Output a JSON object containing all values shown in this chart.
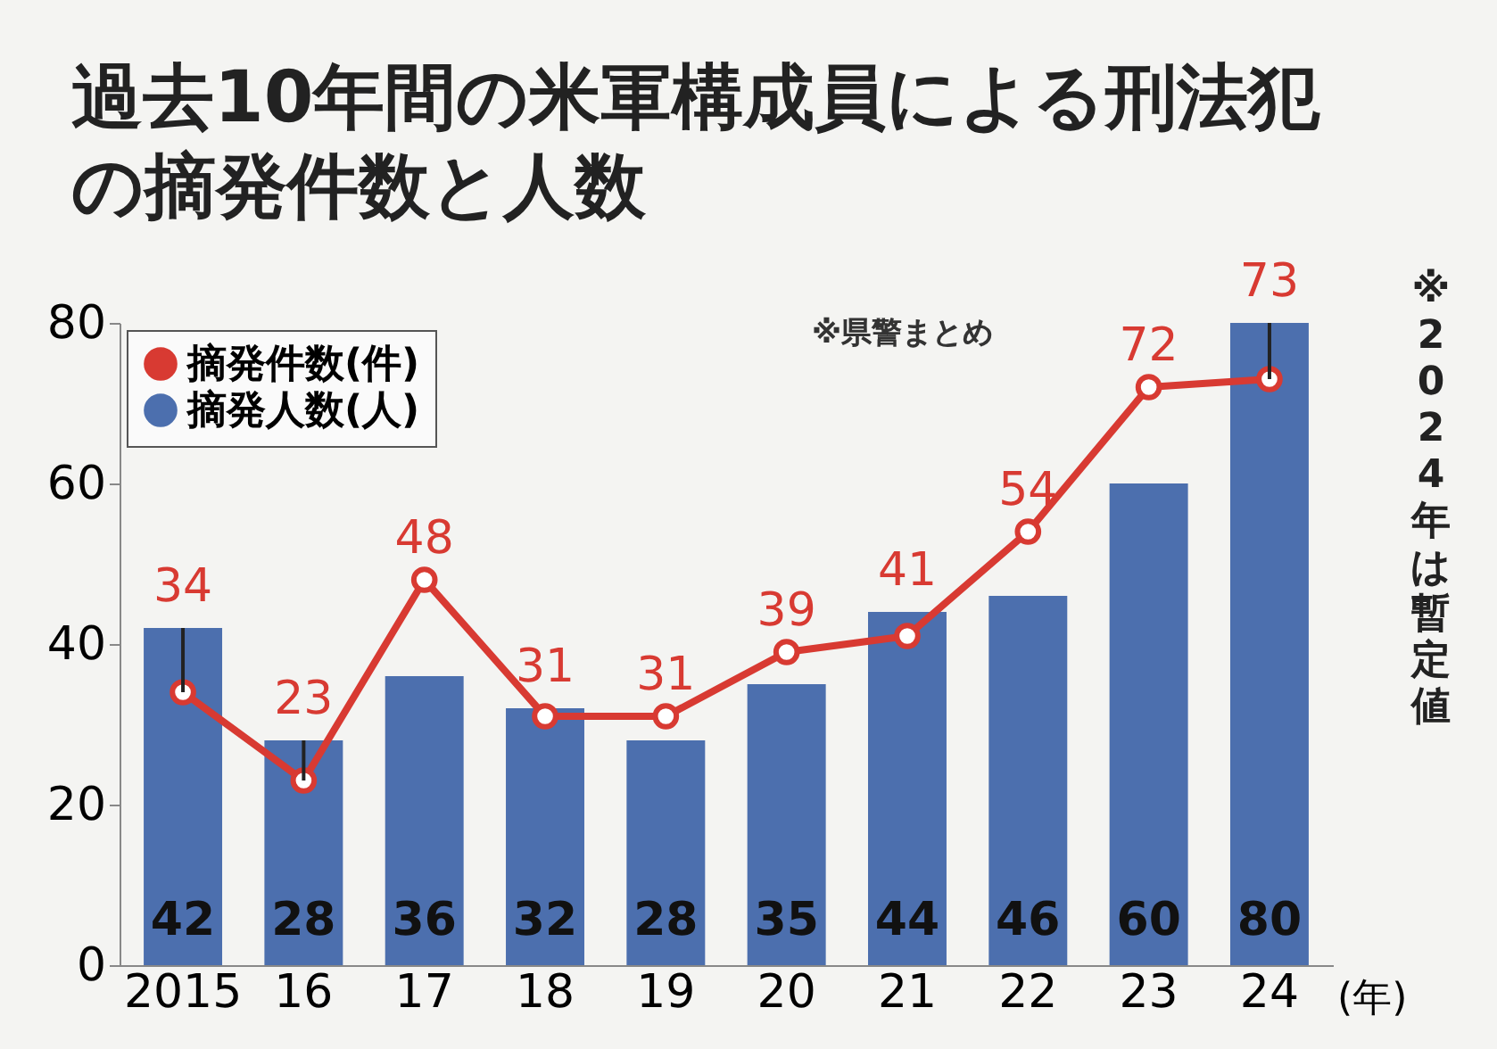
{
  "chart_data": {
    "type": "bar",
    "title": "過去10年間の米軍構成員による刑法犯の摘発件数と人数",
    "xlabel": "(年)",
    "annotations": [
      "※県警まとめ",
      "※2024年は暫定値"
    ],
    "categories": [
      "2015",
      "16",
      "17",
      "18",
      "19",
      "20",
      "21",
      "22",
      "23",
      "24"
    ],
    "series": [
      {
        "name": "摘発件数(件)",
        "type": "line",
        "color": "#d83a32",
        "marker": "circle",
        "values": [
          34,
          23,
          48,
          31,
          31,
          39,
          41,
          54,
          72,
          73
        ]
      },
      {
        "name": "摘発人数(人)",
        "color": "#4c6fae",
        "values": [
          42,
          28,
          36,
          32,
          28,
          35,
          44,
          46,
          60,
          80
        ]
      }
    ],
    "ylim": [
      0,
      80
    ],
    "yticks": [
      0,
      20,
      40,
      60,
      80
    ],
    "data_labels": true,
    "legend": "top left",
    "grid": false
  }
}
